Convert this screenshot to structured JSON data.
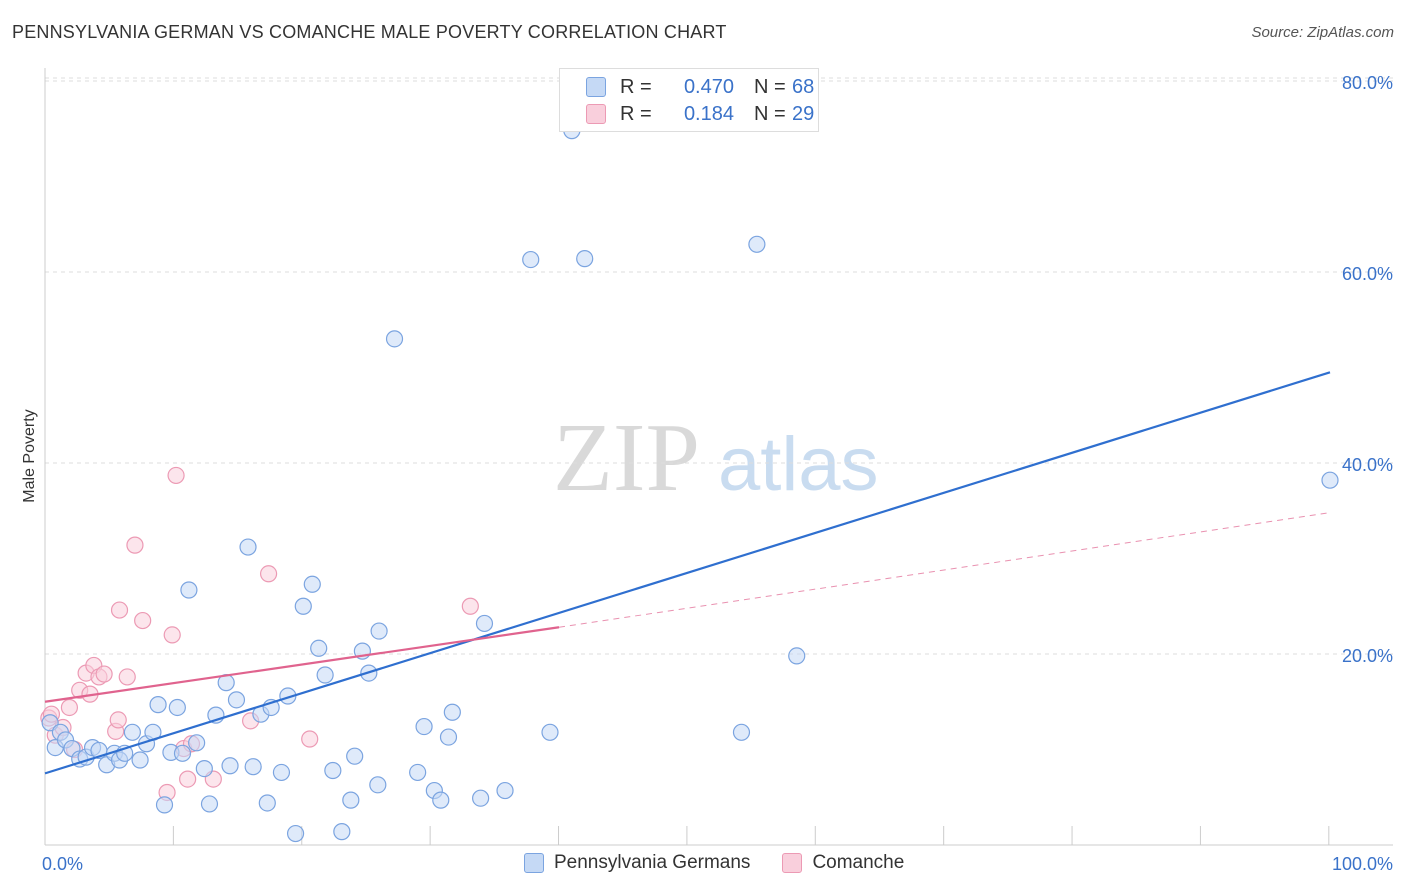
{
  "title": "PENNSYLVANIA GERMAN VS COMANCHE MALE POVERTY CORRELATION CHART",
  "source": "Source: ZipAtlas.com",
  "legend": {
    "series1": {
      "r_label": "R =",
      "r_value": "0.470",
      "n_label": "N =",
      "n_value": "68"
    },
    "series2": {
      "r_label": "R =",
      "r_value": "0.184",
      "n_label": "N =",
      "n_value": "29"
    }
  },
  "colors": {
    "blue_fill": "#c5d9f5",
    "blue_stroke": "#7ba4e0",
    "blue_line": "#2f6fcf",
    "pink_fill": "#f9cfdc",
    "pink_stroke": "#ec9ab4",
    "pink_line": "#e0638e",
    "axis_text": "#3a72c9",
    "grid": "#dddddd"
  },
  "chart_data": {
    "type": "scatter",
    "title": "PENNSYLVANIA GERMAN VS COMANCHE MALE POVERTY CORRELATION CHART",
    "xlabel": "",
    "ylabel": "Male Poverty",
    "xlim": [
      0,
      100
    ],
    "ylim": [
      0,
      82
    ],
    "x_tick_labels": [
      "0.0%",
      "100.0%"
    ],
    "y_ticks": [
      20,
      40,
      60,
      80
    ],
    "y_tick_labels": [
      "20.0%",
      "40.0%",
      "60.0%",
      "80.0%"
    ],
    "watermark": {
      "zip": "ZIP",
      "atlas": "atlas"
    },
    "series": [
      {
        "name": "Pennsylvania Germans",
        "r": 0.47,
        "n": 68,
        "trend": {
          "x": [
            0,
            100
          ],
          "y": [
            7.5,
            49.5
          ]
        },
        "points": [
          [
            0.4,
            12.8
          ],
          [
            0.8,
            10.2
          ],
          [
            1.2,
            11.8
          ],
          [
            1.6,
            11.0
          ],
          [
            2.1,
            10.1
          ],
          [
            2.7,
            9.0
          ],
          [
            3.2,
            9.2
          ],
          [
            3.7,
            10.2
          ],
          [
            4.2,
            9.9
          ],
          [
            4.8,
            8.4
          ],
          [
            5.4,
            9.6
          ],
          [
            5.8,
            8.9
          ],
          [
            6.2,
            9.6
          ],
          [
            6.8,
            11.8
          ],
          [
            7.4,
            8.9
          ],
          [
            7.9,
            10.6
          ],
          [
            8.4,
            11.8
          ],
          [
            8.8,
            14.7
          ],
          [
            9.3,
            4.2
          ],
          [
            9.8,
            9.7
          ],
          [
            10.3,
            14.4
          ],
          [
            10.7,
            9.6
          ],
          [
            11.2,
            26.7
          ],
          [
            11.8,
            10.7
          ],
          [
            12.4,
            8.0
          ],
          [
            12.8,
            4.3
          ],
          [
            13.3,
            13.6
          ],
          [
            14.1,
            17.0
          ],
          [
            14.4,
            8.3
          ],
          [
            14.9,
            15.2
          ],
          [
            15.8,
            31.2
          ],
          [
            16.2,
            8.2
          ],
          [
            16.8,
            13.7
          ],
          [
            17.3,
            4.4
          ],
          [
            17.6,
            14.4
          ],
          [
            18.4,
            7.6
          ],
          [
            18.9,
            15.6
          ],
          [
            19.5,
            1.2
          ],
          [
            20.1,
            25.0
          ],
          [
            20.8,
            27.3
          ],
          [
            21.3,
            20.6
          ],
          [
            21.8,
            17.8
          ],
          [
            22.4,
            7.8
          ],
          [
            23.1,
            1.4
          ],
          [
            23.8,
            4.7
          ],
          [
            24.1,
            9.3
          ],
          [
            24.7,
            20.3
          ],
          [
            25.2,
            18.0
          ],
          [
            25.9,
            6.3
          ],
          [
            26.0,
            22.4
          ],
          [
            27.2,
            53.0
          ],
          [
            29.0,
            7.6
          ],
          [
            29.5,
            12.4
          ],
          [
            30.3,
            5.7
          ],
          [
            30.8,
            4.7
          ],
          [
            31.4,
            11.3
          ],
          [
            31.7,
            13.9
          ],
          [
            33.9,
            4.9
          ],
          [
            34.2,
            23.2
          ],
          [
            35.8,
            5.7
          ],
          [
            37.8,
            61.3
          ],
          [
            39.3,
            11.8
          ],
          [
            41.0,
            74.8
          ],
          [
            42.0,
            61.4
          ],
          [
            54.2,
            11.8
          ],
          [
            55.4,
            62.9
          ],
          [
            58.5,
            19.8
          ],
          [
            100.0,
            38.2
          ]
        ]
      },
      {
        "name": "Comanche",
        "r": 0.184,
        "n": 29,
        "trend": {
          "x": [
            0,
            40
          ],
          "y": [
            15.0,
            22.8
          ]
        },
        "trend_ext": {
          "x": [
            40,
            100
          ],
          "y": [
            22.8,
            34.8
          ]
        },
        "points": [
          [
            0.3,
            13.3
          ],
          [
            0.5,
            13.7
          ],
          [
            0.8,
            11.5
          ],
          [
            1.4,
            12.3
          ],
          [
            1.9,
            14.4
          ],
          [
            2.3,
            10.0
          ],
          [
            2.7,
            16.2
          ],
          [
            3.2,
            18.0
          ],
          [
            3.5,
            15.8
          ],
          [
            3.8,
            18.8
          ],
          [
            4.2,
            17.6
          ],
          [
            4.6,
            17.9
          ],
          [
            5.5,
            11.9
          ],
          [
            5.7,
            13.1
          ],
          [
            5.8,
            24.6
          ],
          [
            6.4,
            17.6
          ],
          [
            7.0,
            31.4
          ],
          [
            7.6,
            23.5
          ],
          [
            9.5,
            5.5
          ],
          [
            9.9,
            22.0
          ],
          [
            10.2,
            38.7
          ],
          [
            10.8,
            10.1
          ],
          [
            11.1,
            6.9
          ],
          [
            11.4,
            10.6
          ],
          [
            13.1,
            6.9
          ],
          [
            16.0,
            13.0
          ],
          [
            17.4,
            28.4
          ],
          [
            20.6,
            11.1
          ],
          [
            33.1,
            25.0
          ]
        ]
      }
    ]
  }
}
